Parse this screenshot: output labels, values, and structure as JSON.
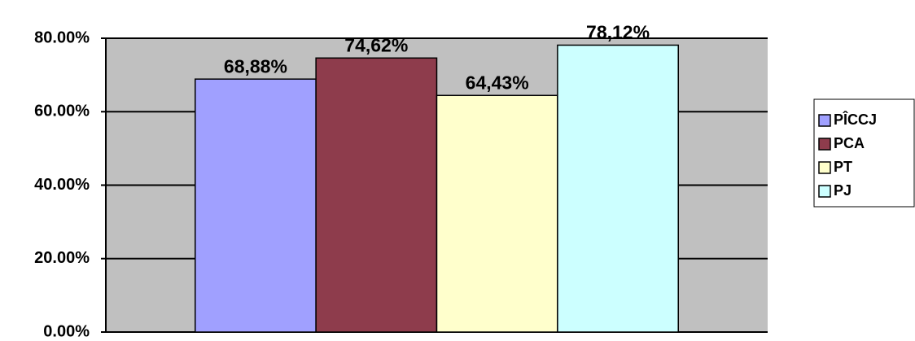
{
  "chart_data": {
    "type": "bar",
    "categories": [
      null
    ],
    "series": [
      {
        "name": "PÎCCJ",
        "color": "#a0a0ff",
        "values": [
          68.88
        ],
        "value_labels": [
          "68,88%"
        ]
      },
      {
        "name": "PCA",
        "color": "#8e3c4c",
        "values": [
          74.62
        ],
        "value_labels": [
          "74,62%"
        ]
      },
      {
        "name": "PT",
        "color": "#ffffcc",
        "values": [
          64.43
        ],
        "value_labels": [
          "64,43%"
        ]
      },
      {
        "name": "PJ",
        "color": "#ccffff",
        "values": [
          78.12
        ],
        "value_labels": [
          "78,12%"
        ]
      }
    ],
    "ylim": [
      0,
      80
    ],
    "yticks": [
      {
        "value": 0,
        "label": "0.00%"
      },
      {
        "value": 20,
        "label": "20.00%"
      },
      {
        "value": 40,
        "label": "40.00%"
      },
      {
        "value": 60,
        "label": "60.00%"
      },
      {
        "value": 80,
        "label": "80.00%"
      }
    ],
    "grid": true,
    "legend": "right",
    "background": "#c0c0c0"
  }
}
